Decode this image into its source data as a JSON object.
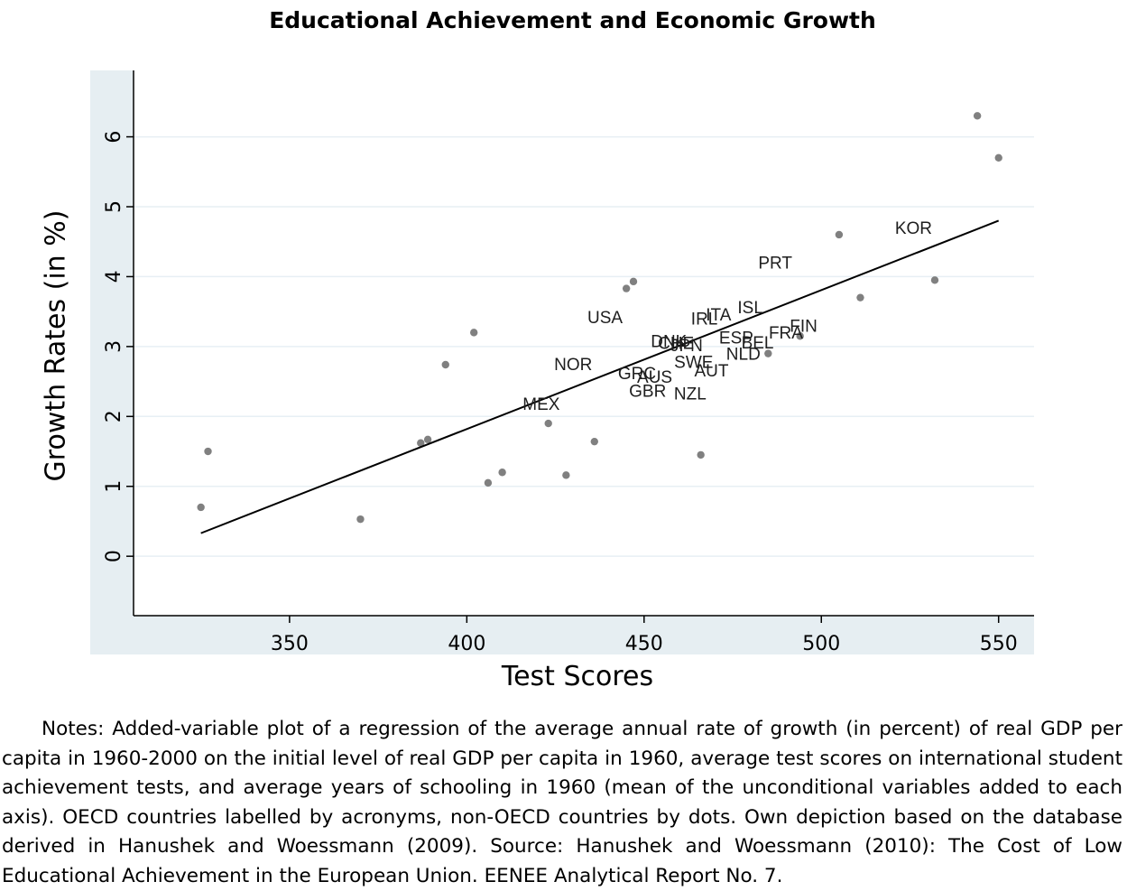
{
  "chart_data": {
    "type": "scatter",
    "title": "Educational Achievement and Economic Growth",
    "xlabel": "Test Scores",
    "ylabel": "Growth Rates (in %)",
    "xlim": [
      306,
      560
    ],
    "ylim": [
      -0.85,
      6.95
    ],
    "xticks": [
      350,
      400,
      450,
      500,
      550
    ],
    "yticks": [
      0,
      1,
      2,
      3,
      4,
      5,
      6
    ],
    "grid": true,
    "legend": "none",
    "labeled_points": [
      {
        "label": "KOR",
        "x": 526,
        "y": 4.7
      },
      {
        "label": "PRT",
        "x": 487,
        "y": 4.2
      },
      {
        "label": "ISL",
        "x": 480,
        "y": 3.56
      },
      {
        "label": "ITA",
        "x": 471,
        "y": 3.46
      },
      {
        "label": "IRL",
        "x": 467,
        "y": 3.4
      },
      {
        "label": "USA",
        "x": 439,
        "y": 3.42
      },
      {
        "label": "FIN",
        "x": 495,
        "y": 3.3
      },
      {
        "label": "FRA",
        "x": 490,
        "y": 3.2
      },
      {
        "label": "ESP",
        "x": 476,
        "y": 3.13
      },
      {
        "label": "BEL",
        "x": 482,
        "y": 3.06
      },
      {
        "label": "DNK",
        "x": 457,
        "y": 3.08
      },
      {
        "label": "CHE",
        "x": 459,
        "y": 3.05
      },
      {
        "label": "JPN",
        "x": 462,
        "y": 3.02
      },
      {
        "label": "NLD",
        "x": 478,
        "y": 2.9
      },
      {
        "label": "SWE",
        "x": 464,
        "y": 2.78
      },
      {
        "label": "NOR",
        "x": 430,
        "y": 2.75
      },
      {
        "label": "AUT",
        "x": 469,
        "y": 2.66
      },
      {
        "label": "GRC",
        "x": 448,
        "y": 2.62
      },
      {
        "label": "AUS",
        "x": 453,
        "y": 2.57
      },
      {
        "label": "GBR",
        "x": 451,
        "y": 2.37
      },
      {
        "label": "NZL",
        "x": 463,
        "y": 2.33
      },
      {
        "label": "MEX",
        "x": 421,
        "y": 2.18
      }
    ],
    "dots": [
      {
        "x": 325,
        "y": 0.7
      },
      {
        "x": 327,
        "y": 1.5
      },
      {
        "x": 370,
        "y": 0.53
      },
      {
        "x": 387,
        "y": 1.62
      },
      {
        "x": 389,
        "y": 1.67
      },
      {
        "x": 394,
        "y": 2.74
      },
      {
        "x": 402,
        "y": 3.2
      },
      {
        "x": 406,
        "y": 1.05
      },
      {
        "x": 410,
        "y": 1.2
      },
      {
        "x": 423,
        "y": 1.9
      },
      {
        "x": 428,
        "y": 1.16
      },
      {
        "x": 436,
        "y": 1.64
      },
      {
        "x": 445,
        "y": 3.83
      },
      {
        "x": 447,
        "y": 3.93
      },
      {
        "x": 466,
        "y": 1.45
      },
      {
        "x": 485,
        "y": 2.9
      },
      {
        "x": 494,
        "y": 3.15
      },
      {
        "x": 505,
        "y": 4.6
      },
      {
        "x": 511,
        "y": 3.7
      },
      {
        "x": 532,
        "y": 3.95
      },
      {
        "x": 544,
        "y": 6.3
      },
      {
        "x": 550,
        "y": 5.7
      }
    ],
    "fit_line": {
      "x": [
        325,
        550
      ],
      "y": [
        0.33,
        4.8
      ]
    }
  },
  "notes": "Notes: Added-variable plot of a regression of the average annual rate of growth (in percent) of real GDP per capita in 1960-2000 on the initial level of real GDP per capita in 1960, average test scores on international student achievement tests, and average years of schooling in 1960 (mean of the unconditional variables added to each axis). OECD countries labelled by acronyms, non-OECD countries by dots. Own depiction based on the database derived in Hanushek and Woessmann (2009). Source: Hanushek and Woessmann (2010): The Cost of Low Educational Achievement in the European Union. EENEE Analytical Report No. 7.",
  "colors": {
    "plot_region_bg": "#e6eef2",
    "plot_bg": "#ffffff",
    "grid": "#e7eff4",
    "dot": "#808080",
    "fit_line": "#000000",
    "label_text": "#1e1e1e"
  }
}
